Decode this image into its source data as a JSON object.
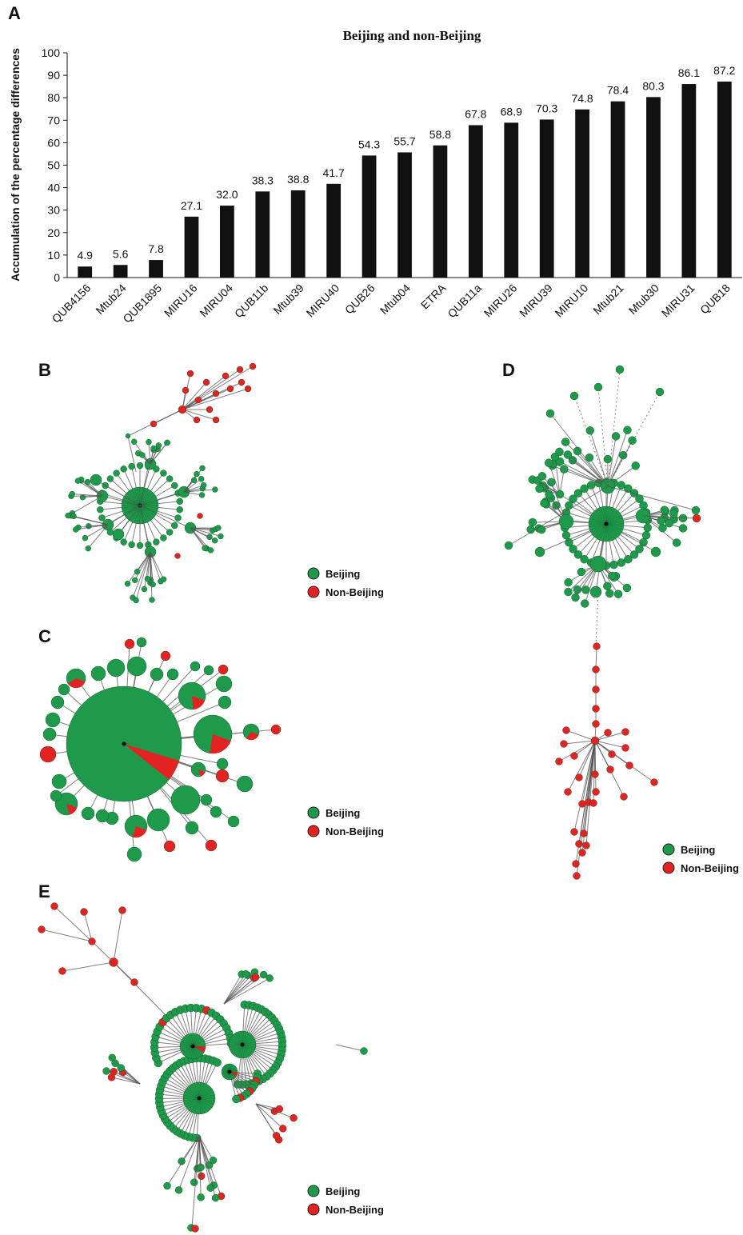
{
  "colors": {
    "beijing": "#1f9a4a",
    "non_beijing": "#e32222",
    "bar": "#111111"
  },
  "panels": {
    "a": "A",
    "b": "B",
    "c": "C",
    "d": "D",
    "e": "E"
  },
  "legend": {
    "beijing": "Beijing",
    "non_beijing": "Non-Beijing"
  },
  "chart_data": {
    "type": "bar",
    "title": "Beijing and non-Beijing",
    "xlabel": "",
    "ylabel": "Accumulation of the percentage differences",
    "ylim": [
      0,
      100
    ],
    "yticks": [
      0,
      10,
      20,
      30,
      40,
      50,
      60,
      70,
      80,
      90,
      100
    ],
    "categories": [
      "QUB4156",
      "Mtub24",
      "QUB1895",
      "MIRU16",
      "MIRU04",
      "QUB11b",
      "Mtub39",
      "MIRU40",
      "QUB26",
      "Mtub04",
      "ETRA",
      "QUB11a",
      "MIRU26",
      "MIRU39",
      "MIRU10",
      "Mtub21",
      "Mtub30",
      "MIRU31",
      "QUB18"
    ],
    "values": [
      4.9,
      5.6,
      7.8,
      27.1,
      32.0,
      38.3,
      38.8,
      41.7,
      54.3,
      55.7,
      58.8,
      67.8,
      68.9,
      70.3,
      74.8,
      78.4,
      80.3,
      86.1,
      87.2
    ],
    "value_labels": [
      "4.9",
      "5.6",
      "7.8",
      "27.1",
      "32.0",
      "38.3",
      "38.8",
      "41.7",
      "54.3",
      "55.7",
      "58.8",
      "67.8",
      "68.9",
      "70.3",
      "74.8",
      "78.4",
      "80.3",
      "86.1",
      "87.2"
    ],
    "grid": false,
    "bar_color": "#111111"
  }
}
